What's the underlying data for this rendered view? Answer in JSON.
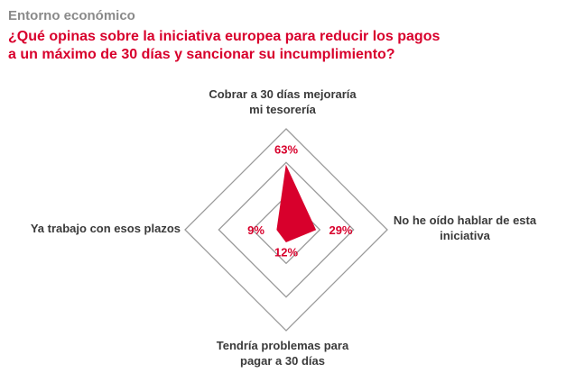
{
  "header": {
    "kicker": "Entorno económico",
    "question_lines": [
      "¿Qué opinas sobre la iniciativa europea para reducir los pagos",
      "a un máximo de 30 días y sancionar su incumplimiento?"
    ]
  },
  "chart_data": {
    "type": "radar",
    "title": "¿Qué opinas sobre la iniciativa europea para reducir los pagos a un máximo de 30 días y sancionar su incumplimiento?",
    "axes": [
      {
        "label_lines": [
          "Cobrar a 30 días mejoraría",
          "mi tesorería"
        ],
        "value": 63,
        "value_label": "63%"
      },
      {
        "label_lines": [
          "No he oído hablar de esta",
          "iniciativa"
        ],
        "value": 29,
        "value_label": "29%"
      },
      {
        "label_lines": [
          "Tendría problemas para",
          "pagar a 30 días"
        ],
        "value": 12,
        "value_label": "12%"
      },
      {
        "label_lines": [
          "Ya trabajo con esos plazos"
        ],
        "value": 9,
        "value_label": "9%"
      }
    ],
    "series": [
      {
        "values": [
          63,
          29,
          12,
          9
        ]
      }
    ],
    "range": [
      0,
      100
    ],
    "grid_rings": 3,
    "colors": {
      "series": "#d8002c",
      "value_labels": "#d8002c",
      "grid": "#9a9a9a",
      "axis_labels": "#3a3a3a",
      "kicker": "#8a8a8a",
      "question": "#d8002c"
    }
  }
}
